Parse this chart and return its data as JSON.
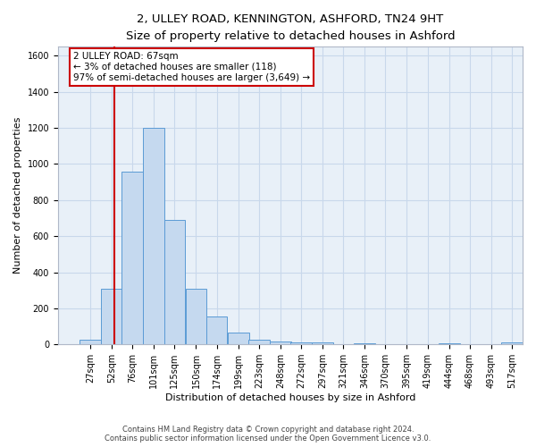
{
  "title_line1": "2, ULLEY ROAD, KENNINGTON, ASHFORD, TN24 9HT",
  "title_line2": "Size of property relative to detached houses in Ashford",
  "xlabel": "Distribution of detached houses by size in Ashford",
  "ylabel": "Number of detached properties",
  "bar_color": "#c5d9ef",
  "bar_edge_color": "#5b9bd5",
  "grid_color": "#c8d8eb",
  "background_color": "#e8f0f8",
  "annotation_text": "2 ULLEY ROAD: 67sqm\n← 3% of detached houses are smaller (118)\n97% of semi-detached houses are larger (3,649) →",
  "vline_x": 67,
  "vline_color": "#cc0000",
  "annotation_box_color": "#ffffff",
  "annotation_box_edge": "#cc0000",
  "bins": [
    27,
    52,
    76,
    101,
    125,
    150,
    174,
    199,
    223,
    248,
    272,
    297,
    321,
    346,
    370,
    395,
    419,
    444,
    468,
    493,
    517
  ],
  "counts": [
    25,
    310,
    960,
    1200,
    690,
    310,
    155,
    65,
    25,
    15,
    10,
    10,
    0,
    5,
    0,
    0,
    0,
    5,
    0,
    0,
    10
  ],
  "ylim": [
    0,
    1650
  ],
  "yticks": [
    0,
    200,
    400,
    600,
    800,
    1000,
    1200,
    1400,
    1600
  ],
  "footer_text": "Contains HM Land Registry data © Crown copyright and database right 2024.\nContains public sector information licensed under the Open Government Licence v3.0.",
  "title_fontsize": 9.5,
  "subtitle_fontsize": 8.5,
  "tick_fontsize": 7,
  "label_fontsize": 8,
  "footer_fontsize": 6,
  "annotation_fontsize": 7.5
}
